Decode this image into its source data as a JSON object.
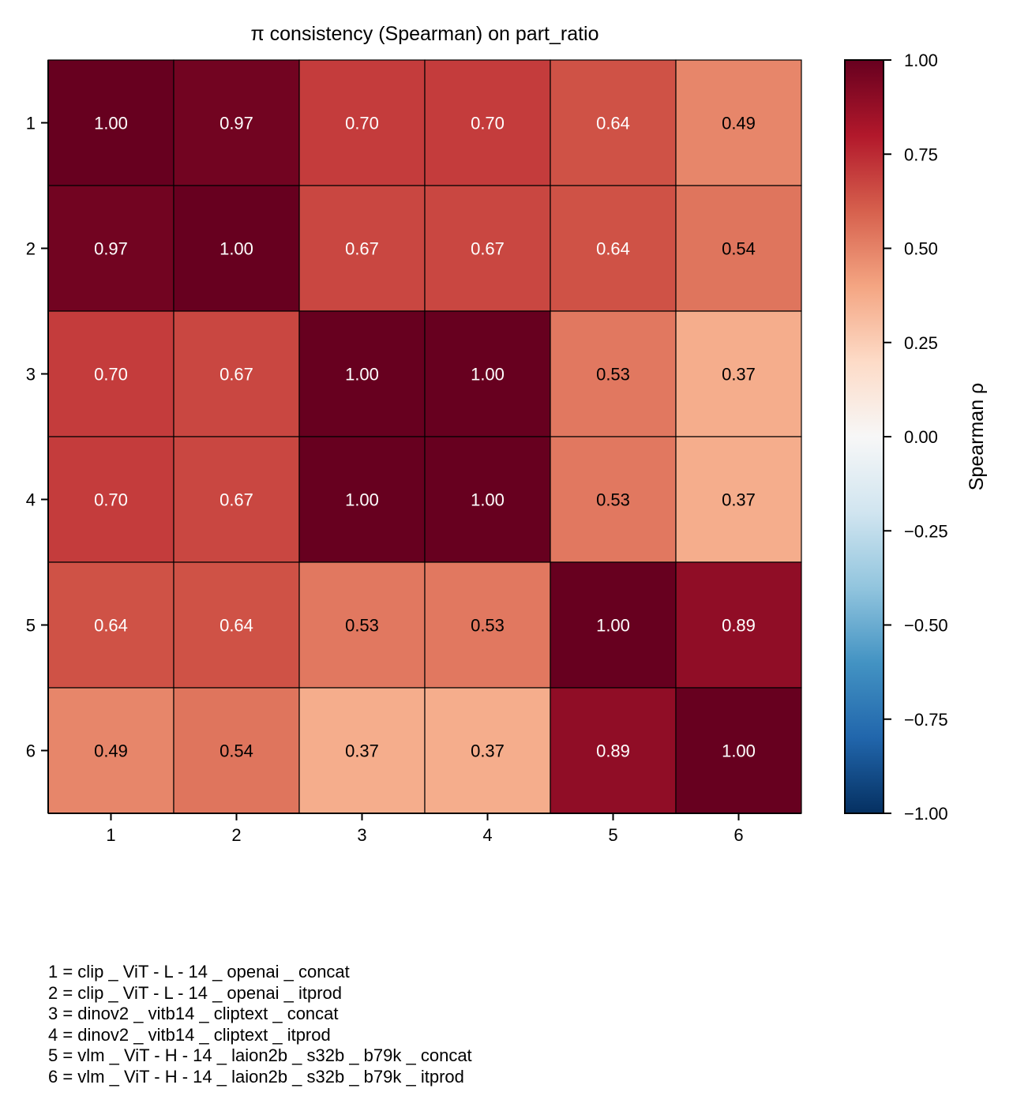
{
  "chart_data": {
    "type": "heatmap",
    "title": "π consistency (Spearman) on part_ratio",
    "x_categories": [
      "1",
      "2",
      "3",
      "4",
      "5",
      "6"
    ],
    "y_categories": [
      "1",
      "2",
      "3",
      "4",
      "5",
      "6"
    ],
    "values": [
      [
        1.0,
        0.97,
        0.7,
        0.7,
        0.64,
        0.49
      ],
      [
        0.97,
        1.0,
        0.67,
        0.67,
        0.64,
        0.54
      ],
      [
        0.7,
        0.67,
        1.0,
        1.0,
        0.53,
        0.37
      ],
      [
        0.7,
        0.67,
        1.0,
        1.0,
        0.53,
        0.37
      ],
      [
        0.64,
        0.64,
        0.53,
        0.53,
        1.0,
        0.89
      ],
      [
        0.49,
        0.54,
        0.37,
        0.37,
        0.89,
        1.0
      ]
    ],
    "cell_labels": [
      [
        "1.00",
        "0.97",
        "0.70",
        "0.70",
        "0.64",
        "0.49"
      ],
      [
        "0.97",
        "1.00",
        "0.67",
        "0.67",
        "0.64",
        "0.54"
      ],
      [
        "0.70",
        "0.67",
        "1.00",
        "1.00",
        "0.53",
        "0.37"
      ],
      [
        "0.70",
        "0.67",
        "1.00",
        "1.00",
        "0.53",
        "0.37"
      ],
      [
        "0.64",
        "0.64",
        "0.53",
        "0.53",
        "1.00",
        "0.89"
      ],
      [
        "0.49",
        "0.54",
        "0.37",
        "0.37",
        "0.89",
        "1.00"
      ]
    ],
    "colorbar": {
      "label": "Spearman ρ",
      "range": [
        -1.0,
        1.0
      ],
      "ticks": [
        1.0,
        0.75,
        0.5,
        0.25,
        0.0,
        -0.25,
        -0.5,
        -0.75,
        -1.0
      ],
      "tick_labels": [
        "1.00",
        "0.75",
        "0.50",
        "0.25",
        "0.00",
        "−0.25",
        "−0.50",
        "−0.75",
        "−1.00"
      ],
      "colormap": "RdBu_r"
    },
    "legend_lines": [
      "1 = clip _ ViT - L - 14 _ openai _ concat",
      "2 = clip _ ViT - L - 14 _ openai _ itprod",
      "3 = dinov2 _ vitb14 _ cliptext _ concat",
      "4 = dinov2 _ vitb14 _ cliptext _ itprod",
      "5 = vlm _ ViT - H - 14 _ laion2b _ s32b _ b79k _ concat",
      "6 = vlm _ ViT - H - 14 _ laion2b _ s32b _ b79k _ itprod"
    ]
  }
}
